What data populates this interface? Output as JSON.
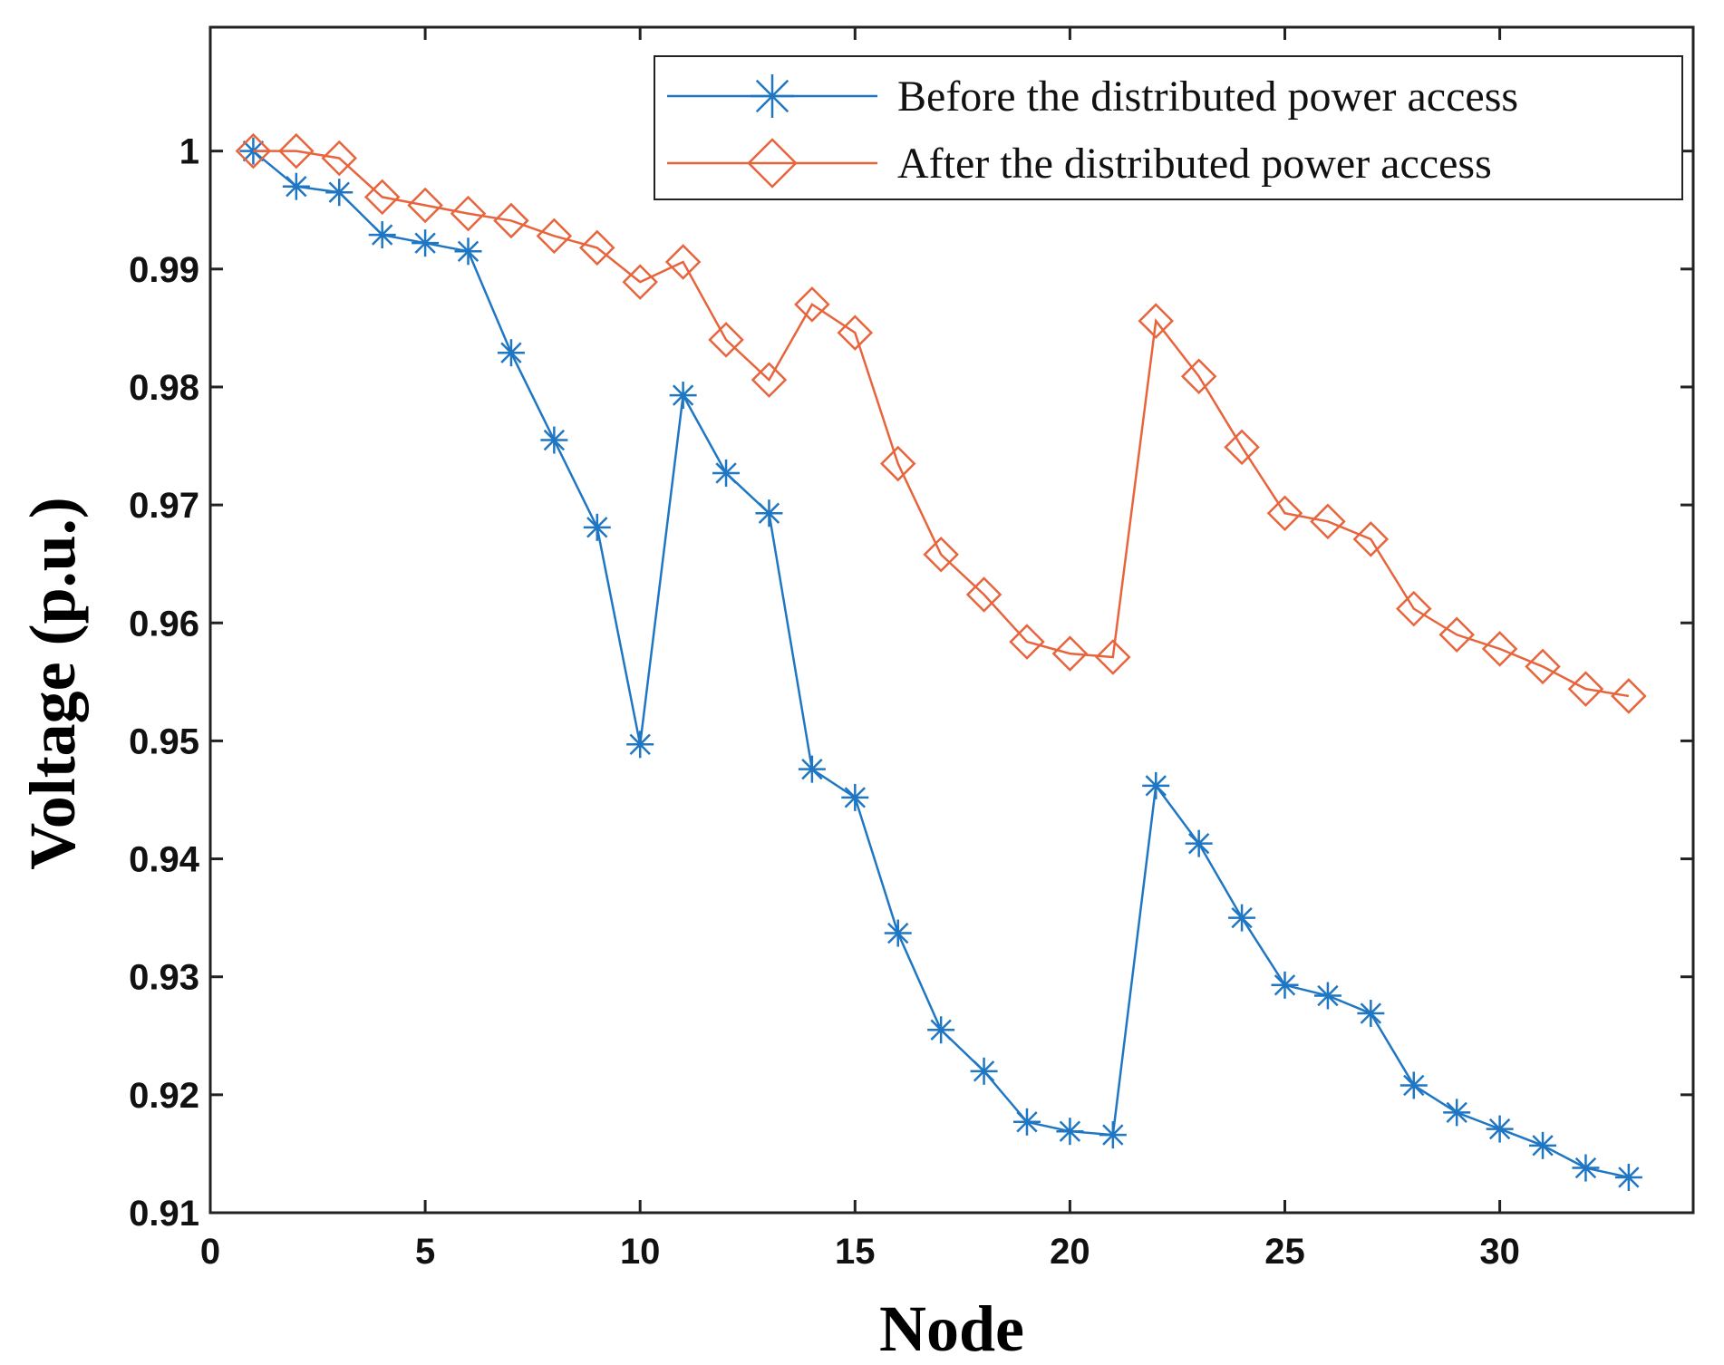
{
  "chart_data": {
    "type": "line",
    "title": "",
    "xlabel": "Node",
    "ylabel": "Voltage (p.u.)",
    "xlim": [
      0,
      34.5
    ],
    "ylim": [
      0.91,
      1.0105
    ],
    "xticks": [
      0,
      5,
      10,
      15,
      20,
      25,
      30
    ],
    "yticks": [
      0.91,
      0.92,
      0.93,
      0.94,
      0.95,
      0.96,
      0.97,
      0.98,
      0.99,
      1
    ],
    "xtick_labels": [
      "0",
      "5",
      "10",
      "15",
      "20",
      "25",
      "30"
    ],
    "ytick_labels": [
      "0.91",
      "0.92",
      "0.93",
      "0.94",
      "0.95",
      "0.96",
      "0.97",
      "0.98",
      "0.99",
      "1"
    ],
    "grid": false,
    "legend_position": "top-right",
    "x": [
      1,
      2,
      3,
      4,
      5,
      6,
      7,
      8,
      9,
      10,
      11,
      12,
      13,
      14,
      15,
      16,
      17,
      18,
      19,
      20,
      21,
      22,
      23,
      24,
      25,
      26,
      27,
      28,
      29,
      30,
      31,
      32,
      33
    ],
    "series": [
      {
        "name": "Before the distributed power access",
        "color": "#1f77c4",
        "marker": "asterisk",
        "values": [
          1.0,
          0.997,
          0.9965,
          0.9929,
          0.9922,
          0.9915,
          0.9829,
          0.9755,
          0.9681,
          0.9497,
          0.9793,
          0.9727,
          0.9693,
          0.9476,
          0.9452,
          0.9337,
          0.9255,
          0.922,
          0.9177,
          0.9169,
          0.9166,
          0.9462,
          0.9413,
          0.935,
          0.9293,
          0.9284,
          0.9269,
          0.9208,
          0.9185,
          0.9171,
          0.9157,
          0.9138,
          0.913
        ]
      },
      {
        "name": "After the distributed power access",
        "color": "#e8643c",
        "marker": "diamond",
        "values": [
          1.0,
          1.0,
          0.9994,
          0.9961,
          0.9954,
          0.9947,
          0.9941,
          0.9928,
          0.9918,
          0.9889,
          0.9906,
          0.984,
          0.9806,
          0.987,
          0.9846,
          0.9735,
          0.9658,
          0.9624,
          0.9584,
          0.9574,
          0.9571,
          0.9856,
          0.9809,
          0.9749,
          0.9693,
          0.9686,
          0.9671,
          0.9612,
          0.959,
          0.9578,
          0.9563,
          0.9544,
          0.9538
        ]
      }
    ]
  }
}
